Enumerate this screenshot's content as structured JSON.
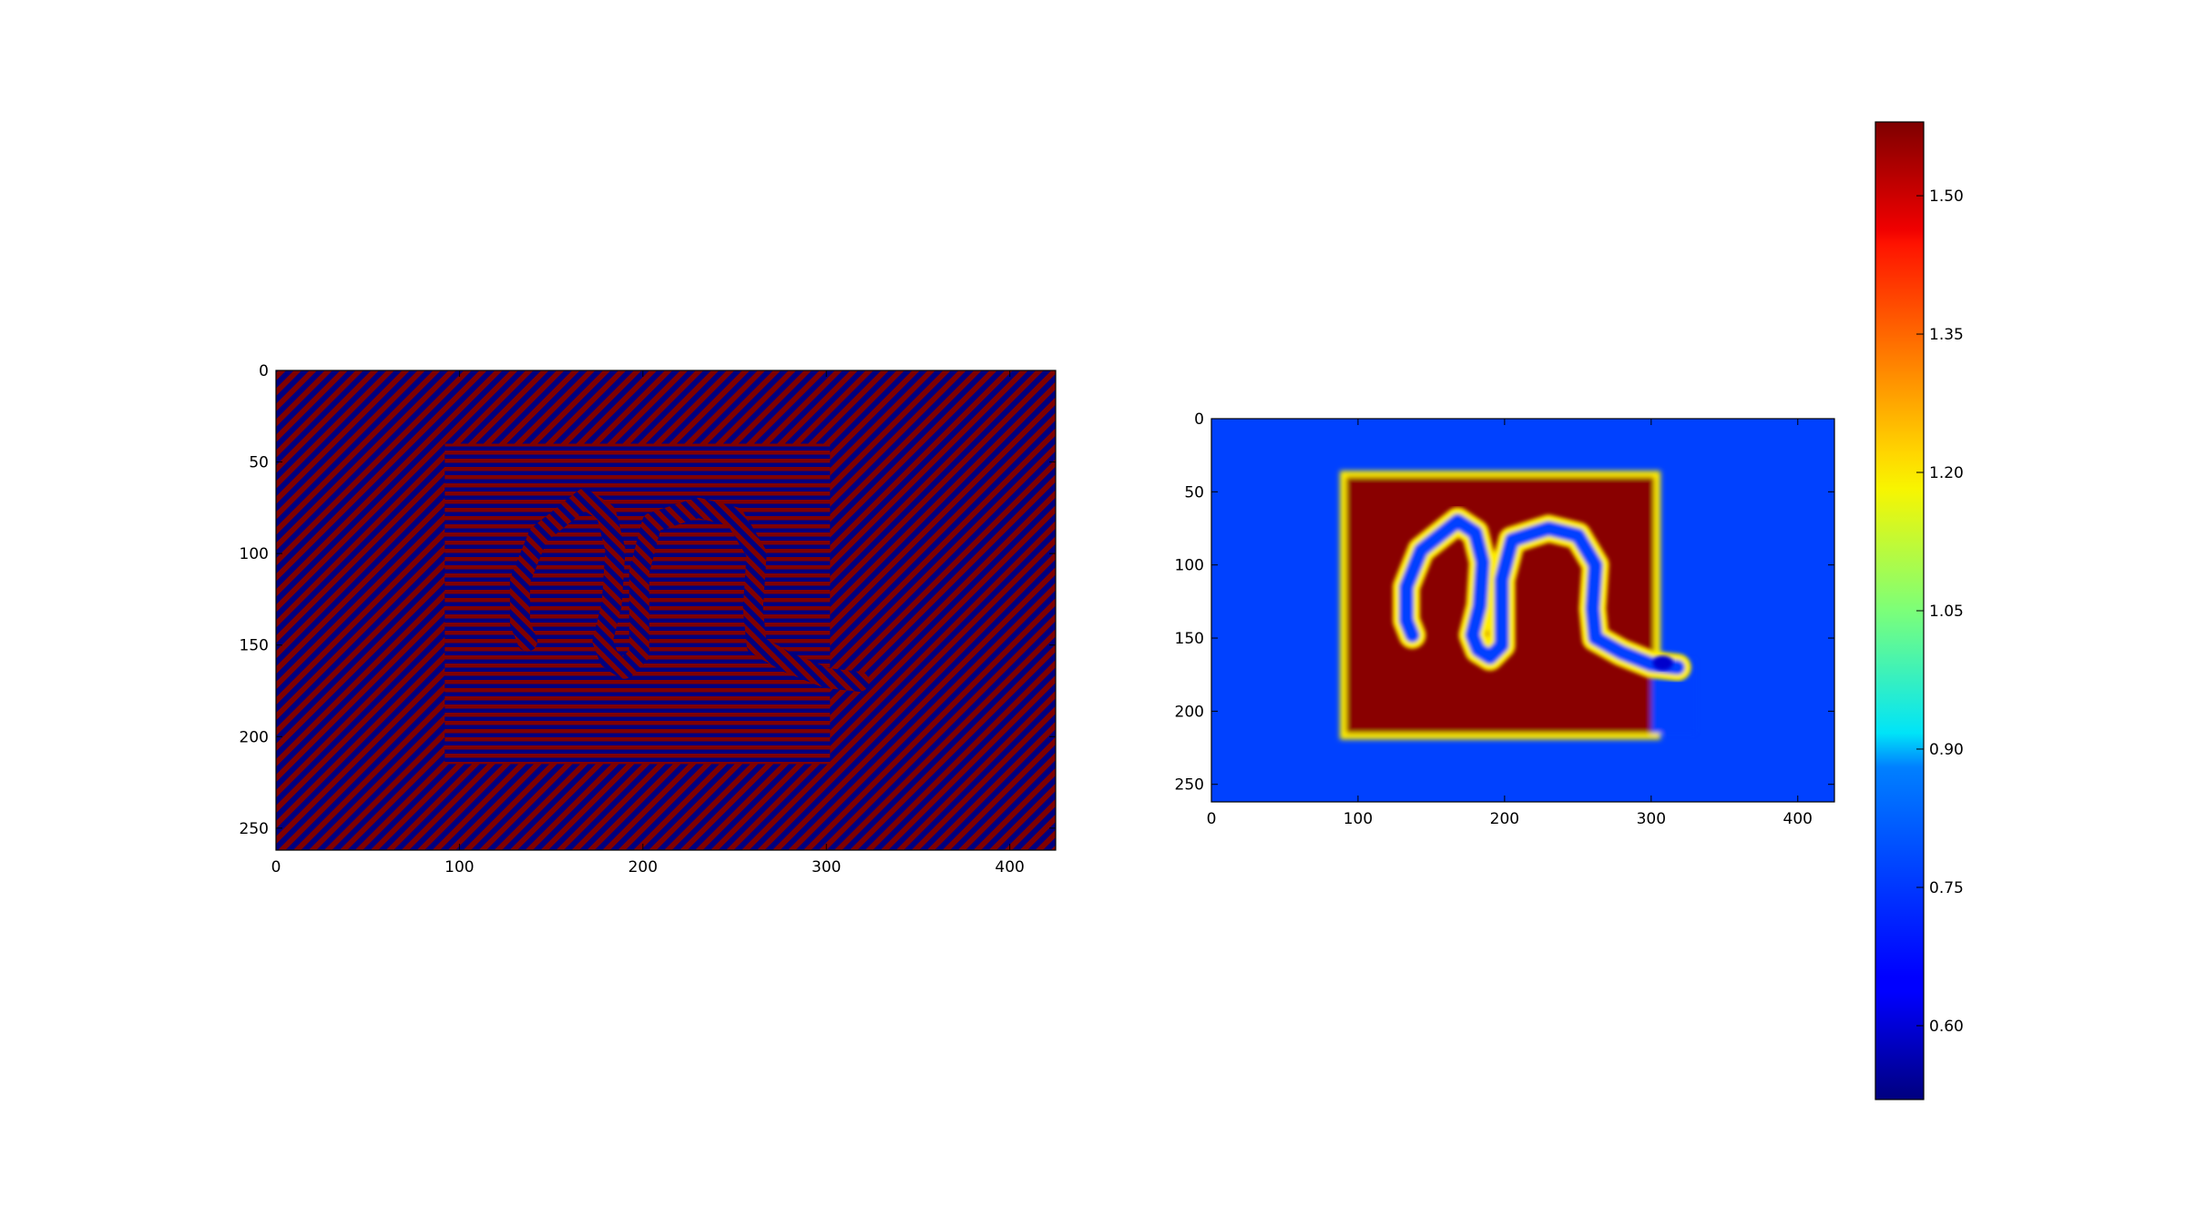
{
  "figure": {
    "panels": 2,
    "layout": "two image panels side by side with a shared vertical colorbar at right"
  },
  "chart_data": [
    {
      "type": "heatmap",
      "title": "",
      "xlabel": "",
      "ylabel": "",
      "colormap": "jet",
      "grid": false,
      "xlim": [
        0,
        425
      ],
      "ylim": [
        262,
        0
      ],
      "x_ticks": [
        "0",
        "100",
        "200",
        "300",
        "400"
      ],
      "y_ticks": [
        "0",
        "50",
        "100",
        "150",
        "200",
        "250"
      ],
      "pattern": "stripe texture of alternating dark red (#800000) and dark blue (#00007f) lines; diagonal stripes in the background, horizontal stripes inside a rectangle from x≈92 to x≈302, y≈40 to y≈215, with a curved diagonal-striped band inside",
      "stripe_colors": [
        "#7f0000",
        "#00007f"
      ],
      "regions": {
        "outer_background": {
          "orientation": "diagonal",
          "x": [
            0,
            425
          ],
          "y": [
            0,
            262
          ]
        },
        "inner_rectangle": {
          "orientation": "horizontal",
          "x": [
            92,
            302
          ],
          "y": [
            40,
            215
          ]
        }
      }
    },
    {
      "type": "heatmap",
      "title": "",
      "xlabel": "",
      "ylabel": "",
      "colormap": "jet",
      "grid": false,
      "xlim": [
        0,
        425
      ],
      "ylim": [
        262,
        0
      ],
      "x_ticks": [
        "0",
        "100",
        "200",
        "300",
        "400"
      ],
      "y_ticks": [
        "0",
        "50",
        "100",
        "150",
        "200",
        "250"
      ],
      "background_value": 0.72,
      "inner_value": 1.57,
      "band_value": 0.72,
      "edge_value": 1.2,
      "regions": {
        "inner_rectangle": {
          "x": [
            92,
            302
          ],
          "y": [
            40,
            215
          ]
        },
        "rectangle_notch": {
          "x": [
            300,
            330
          ],
          "y": [
            165,
            215
          ]
        }
      },
      "band_path": [
        [
          137,
          148
        ],
        [
          133,
          138
        ],
        [
          133,
          115
        ],
        [
          143,
          90
        ],
        [
          168,
          70
        ],
        [
          180,
          78
        ],
        [
          185,
          98
        ],
        [
          183,
          128
        ],
        [
          178,
          148
        ],
        [
          182,
          158
        ],
        [
          190,
          163
        ],
        [
          198,
          155
        ],
        [
          198,
          138
        ],
        [
          198,
          110
        ],
        [
          205,
          83
        ],
        [
          230,
          75
        ],
        [
          250,
          80
        ],
        [
          262,
          100
        ],
        [
          260,
          130
        ],
        [
          262,
          150
        ],
        [
          280,
          160
        ],
        [
          300,
          168
        ],
        [
          318,
          170
        ]
      ],
      "blob": {
        "x": 308,
        "y": 167,
        "value": 0.6
      }
    }
  ],
  "colorbar": {
    "colormap": "jet",
    "range": [
      0.52,
      1.58
    ],
    "ticks": [
      "0.60",
      "0.75",
      "0.90",
      "1.05",
      "1.20",
      "1.35",
      "1.50"
    ],
    "tick_values": [
      0.6,
      0.75,
      0.9,
      1.05,
      1.2,
      1.35,
      1.5
    ],
    "orientation": "vertical",
    "placement": "right"
  },
  "colors": {
    "stripe_red": "#7f0000",
    "stripe_blue": "#00007f",
    "field_blue": "#1a56ff",
    "field_red": "#7f0000",
    "axis": "#000000"
  }
}
